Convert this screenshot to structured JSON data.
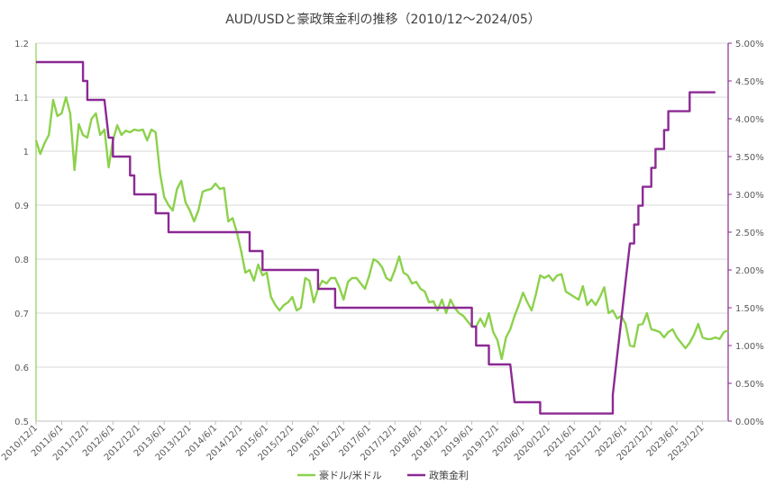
{
  "chart_data": {
    "type": "line",
    "title": "AUD/USDと豪政策金利の推移（2010/12〜2024/05）",
    "x_tick_labels": [
      "2010/12/1",
      "2011/6/1",
      "2011/12/1",
      "2012/6/1",
      "2012/12/1",
      "2013/6/1",
      "2013/12/1",
      "2014/6/1",
      "2014/12/1",
      "2015/6/1",
      "2015/12/1",
      "2016/6/1",
      "2016/12/1",
      "2017/6/1",
      "2017/12/1",
      "2018/6/1",
      "2018/12/1",
      "2019/6/1",
      "2019/12/1",
      "2020/6/1",
      "2020/12/1",
      "2021/6/1",
      "2021/12/1",
      "2022/6/1",
      "2022/12/1",
      "2023/6/1",
      "2023/12/1"
    ],
    "y_left": {
      "ylim": [
        0.5,
        1.2
      ],
      "ticks": [
        "0.5",
        "0.6",
        "0.7",
        "0.8",
        "0.9",
        "1",
        "1.1",
        "1.2"
      ]
    },
    "y_right": {
      "ylim": [
        0,
        5
      ],
      "ticks": [
        "0.00%",
        "0.50%",
        "1.00%",
        "1.50%",
        "2.00%",
        "2.50%",
        "3.00%",
        "3.50%",
        "4.00%",
        "4.50%",
        "5.00%"
      ]
    },
    "grid": true,
    "legend_position": "bottom",
    "colors": {
      "aud": "#8cd14c",
      "rate": "#8b2a93",
      "axis_left": "#8cd14c",
      "axis_right": "#8b2a93",
      "grid": "#d9d9d9"
    },
    "series": [
      {
        "name": "豪ドル/米ドル",
        "axis": "left",
        "start": "2010-12",
        "values": [
          1.02,
          0.995,
          1.015,
          1.03,
          1.095,
          1.065,
          1.07,
          1.1,
          1.07,
          0.965,
          1.05,
          1.03,
          1.025,
          1.06,
          1.07,
          1.03,
          1.04,
          0.97,
          1.02,
          1.048,
          1.03,
          1.038,
          1.035,
          1.04,
          1.038,
          1.04,
          1.02,
          1.04,
          1.035,
          0.96,
          0.915,
          0.9,
          0.89,
          0.93,
          0.945,
          0.905,
          0.89,
          0.87,
          0.89,
          0.925,
          0.928,
          0.93,
          0.94,
          0.93,
          0.932,
          0.87,
          0.876,
          0.85,
          0.815,
          0.775,
          0.78,
          0.76,
          0.79,
          0.77,
          0.775,
          0.73,
          0.715,
          0.705,
          0.715,
          0.72,
          0.73,
          0.705,
          0.71,
          0.765,
          0.76,
          0.72,
          0.745,
          0.76,
          0.755,
          0.765,
          0.765,
          0.748,
          0.725,
          0.758,
          0.765,
          0.765,
          0.755,
          0.745,
          0.77,
          0.8,
          0.795,
          0.785,
          0.765,
          0.76,
          0.78,
          0.805,
          0.775,
          0.77,
          0.755,
          0.758,
          0.745,
          0.74,
          0.72,
          0.722,
          0.705,
          0.725,
          0.7,
          0.725,
          0.71,
          0.7,
          0.695,
          0.685,
          0.675,
          0.675,
          0.69,
          0.675,
          0.7,
          0.665,
          0.65,
          0.615,
          0.655,
          0.67,
          0.695,
          0.715,
          0.738,
          0.72,
          0.705,
          0.735,
          0.77,
          0.765,
          0.77,
          0.76,
          0.77,
          0.772,
          0.74,
          0.735,
          0.73,
          0.725,
          0.75,
          0.715,
          0.725,
          0.715,
          0.73,
          0.748,
          0.7,
          0.705,
          0.69,
          0.695,
          0.68,
          0.64,
          0.638,
          0.678,
          0.68,
          0.7,
          0.67,
          0.668,
          0.665,
          0.655,
          0.665,
          0.67,
          0.655,
          0.645,
          0.635,
          0.645,
          0.66,
          0.68,
          0.655,
          0.652,
          0.652,
          0.655,
          0.652,
          0.665,
          0.668
        ]
      },
      {
        "name": "政策金利",
        "axis": "right",
        "start": "2010-12",
        "values": [
          4.75,
          4.75,
          4.75,
          4.75,
          4.75,
          4.75,
          4.75,
          4.75,
          4.75,
          4.75,
          4.75,
          4.5,
          4.25,
          4.25,
          4.25,
          4.25,
          4.25,
          3.75,
          3.5,
          3.5,
          3.5,
          3.5,
          3.25,
          3.0,
          3.0,
          3.0,
          3.0,
          3.0,
          2.75,
          2.75,
          2.75,
          2.5,
          2.5,
          2.5,
          2.5,
          2.5,
          2.5,
          2.5,
          2.5,
          2.5,
          2.5,
          2.5,
          2.5,
          2.5,
          2.5,
          2.5,
          2.5,
          2.5,
          2.5,
          2.5,
          2.25,
          2.25,
          2.25,
          2.0,
          2.0,
          2.0,
          2.0,
          2.0,
          2.0,
          2.0,
          2.0,
          2.0,
          2.0,
          2.0,
          2.0,
          2.0,
          1.75,
          1.75,
          1.75,
          1.75,
          1.5,
          1.5,
          1.5,
          1.5,
          1.5,
          1.5,
          1.5,
          1.5,
          1.5,
          1.5,
          1.5,
          1.5,
          1.5,
          1.5,
          1.5,
          1.5,
          1.5,
          1.5,
          1.5,
          1.5,
          1.5,
          1.5,
          1.5,
          1.5,
          1.5,
          1.5,
          1.5,
          1.5,
          1.5,
          1.5,
          1.5,
          1.5,
          1.25,
          1.0,
          1.0,
          1.0,
          0.75,
          0.75,
          0.75,
          0.75,
          0.75,
          0.75,
          0.25,
          0.25,
          0.25,
          0.25,
          0.25,
          0.25,
          0.1,
          0.1,
          0.1,
          0.1,
          0.1,
          0.1,
          0.1,
          0.1,
          0.1,
          0.1,
          0.1,
          0.1,
          0.1,
          0.1,
          0.1,
          0.1,
          0.1,
          0.35,
          0.85,
          1.35,
          1.85,
          2.35,
          2.6,
          2.85,
          3.1,
          3.1,
          3.35,
          3.6,
          3.6,
          3.85,
          4.1,
          4.1,
          4.1,
          4.1,
          4.1,
          4.35,
          4.35,
          4.35,
          4.35,
          4.35,
          4.35,
          4.35
        ]
      }
    ]
  }
}
